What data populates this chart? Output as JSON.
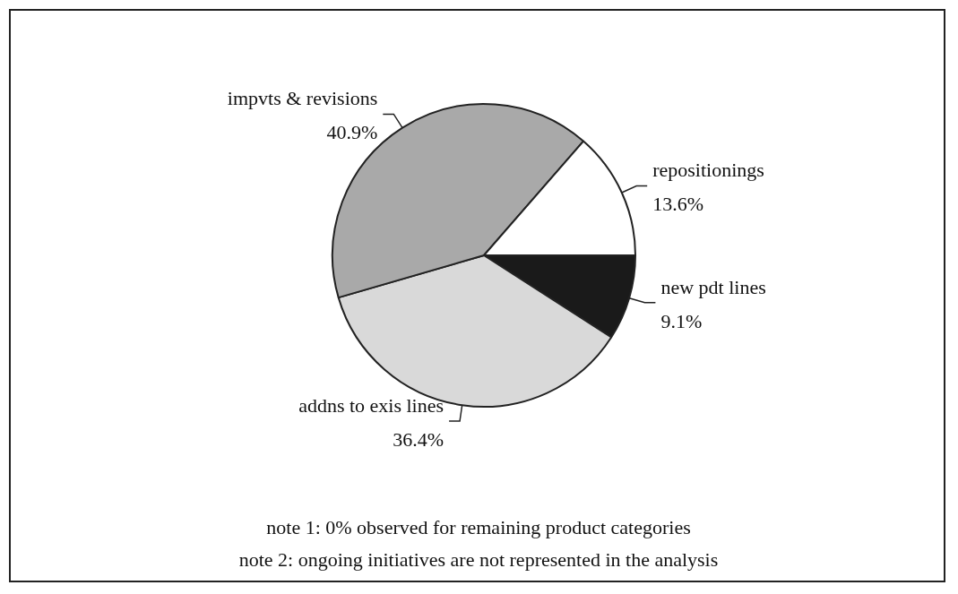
{
  "chart_data": {
    "type": "pie",
    "categories": [
      "new pdt lines",
      "addns to exis lines",
      "impvts & revisions",
      "repositionings"
    ],
    "values": [
      9.1,
      36.4,
      40.9,
      13.6
    ],
    "colors": [
      "#1a1a1a",
      "#d9d9d9",
      "#a9a9a9",
      "#ffffff"
    ],
    "value_labels": [
      "9.1%",
      "36.4%",
      "40.9%",
      "13.6%"
    ],
    "legend": false,
    "annotations": [
      "note 1: 0% observed for remaining product categories",
      "note 2: ongoing initiatives are not represented in the analysis"
    ]
  }
}
